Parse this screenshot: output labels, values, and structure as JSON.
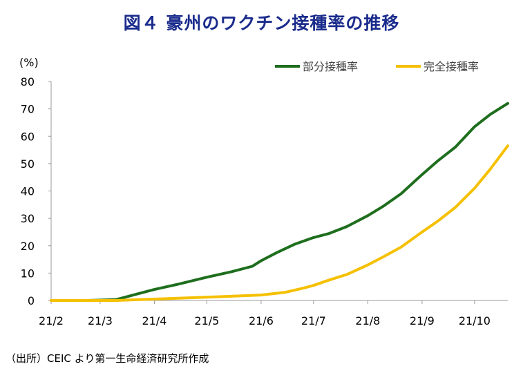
{
  "title": "図４ 豪州のワクチン接種率の推移",
  "source": "（出所）CEIC より第一生命経済研究所作成",
  "chart_data": {
    "type": "line",
    "y_unit_label": "(%)",
    "ylim": [
      0,
      80
    ],
    "yticks": [
      0,
      10,
      20,
      30,
      40,
      50,
      60,
      70,
      80
    ],
    "x_tick_labels": [
      "21/2",
      "21/3",
      "21/4",
      "21/5",
      "21/6",
      "21/7",
      "21/8",
      "21/9",
      "21/10"
    ],
    "x_tick_dates": [
      "2021-02-01",
      "2021-03-01",
      "2021-04-01",
      "2021-05-01",
      "2021-06-01",
      "2021-07-01",
      "2021-08-01",
      "2021-09-01",
      "2021-10-01"
    ],
    "xlim": [
      "2021-02-01",
      "2021-10-20"
    ],
    "grid": false,
    "legend_position": "top-right",
    "series": [
      {
        "name": "部分接種率",
        "color": "#1e6e1e",
        "points": [
          [
            "2021-02-01",
            0
          ],
          [
            "2021-02-22",
            0
          ],
          [
            "2021-03-10",
            0.3
          ],
          [
            "2021-03-20",
            2.0
          ],
          [
            "2021-04-01",
            4.0
          ],
          [
            "2021-04-15",
            6.0
          ],
          [
            "2021-05-01",
            8.5
          ],
          [
            "2021-05-15",
            10.5
          ],
          [
            "2021-05-27",
            12.5
          ],
          [
            "2021-06-01",
            14.5
          ],
          [
            "2021-06-10",
            17.5
          ],
          [
            "2021-06-20",
            20.5
          ],
          [
            "2021-07-01",
            23.0
          ],
          [
            "2021-07-10",
            24.5
          ],
          [
            "2021-07-20",
            27.0
          ],
          [
            "2021-08-01",
            31.0
          ],
          [
            "2021-08-10",
            34.5
          ],
          [
            "2021-08-20",
            39.0
          ],
          [
            "2021-09-01",
            46.0
          ],
          [
            "2021-09-10",
            51.0
          ],
          [
            "2021-09-20",
            56.0
          ],
          [
            "2021-10-01",
            63.5
          ],
          [
            "2021-10-10",
            68.0
          ],
          [
            "2021-10-20",
            72.0
          ]
        ]
      },
      {
        "name": "完全接種率",
        "color": "#f5c000",
        "points": [
          [
            "2021-02-01",
            0
          ],
          [
            "2021-03-10",
            0
          ],
          [
            "2021-04-01",
            0.5
          ],
          [
            "2021-05-01",
            1.2
          ],
          [
            "2021-06-01",
            2.0
          ],
          [
            "2021-06-15",
            3.0
          ],
          [
            "2021-06-25",
            4.5
          ],
          [
            "2021-07-01",
            5.5
          ],
          [
            "2021-07-10",
            7.5
          ],
          [
            "2021-07-20",
            9.5
          ],
          [
            "2021-08-01",
            13.0
          ],
          [
            "2021-08-10",
            16.0
          ],
          [
            "2021-08-20",
            19.5
          ],
          [
            "2021-09-01",
            25.0
          ],
          [
            "2021-09-10",
            29.0
          ],
          [
            "2021-09-20",
            34.0
          ],
          [
            "2021-10-01",
            41.0
          ],
          [
            "2021-10-10",
            48.0
          ],
          [
            "2021-10-20",
            56.5
          ]
        ]
      }
    ]
  }
}
